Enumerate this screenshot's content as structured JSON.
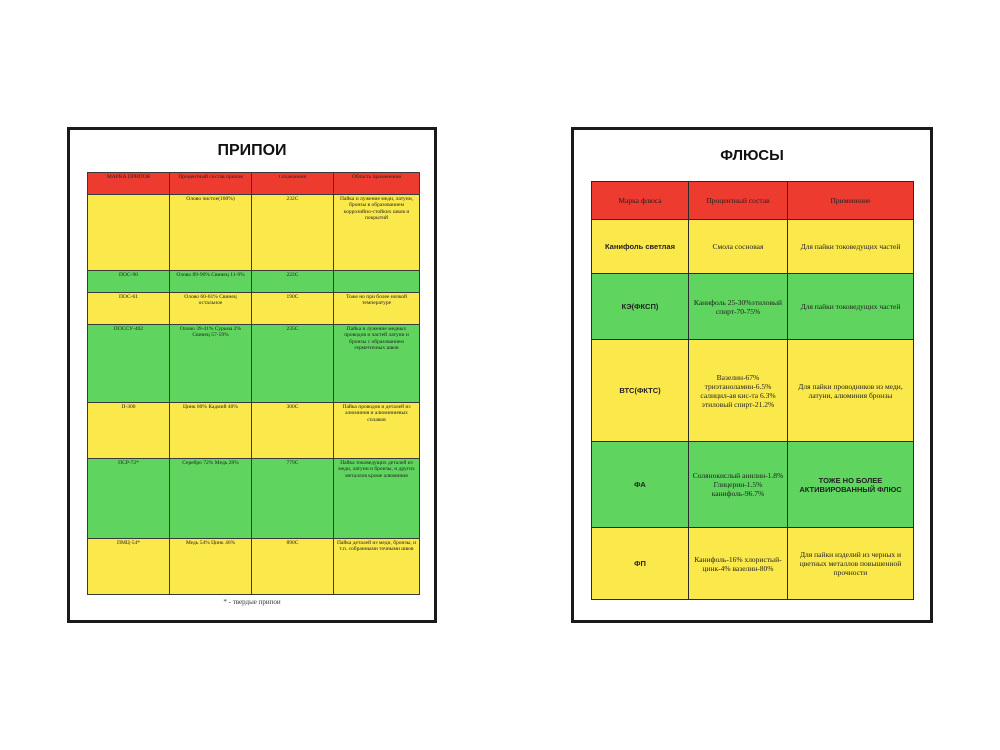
{
  "solders": {
    "title": "ПРИПОИ",
    "headers": [
      "МАРКА ПРИПОЯ",
      "Процентный состав припоя",
      "t плавления",
      "Область применения"
    ],
    "rows": [
      {
        "color": "y",
        "cells": [
          "",
          "Олово чистое(100%)",
          "232С",
          "Пайка и лужение меди, латуни, бронзы в образованием коррозийно-стойких швов и покрытий"
        ]
      },
      {
        "color": "g",
        "cells": [
          "ПОС-90",
          "Олово 89-90% Свинец 11-9%",
          "222С",
          ""
        ]
      },
      {
        "color": "y",
        "cells": [
          "ПОС-61",
          "Олово 60-61% Свинец остальное",
          "190С",
          "Тоже но при более низкой температуре"
        ]
      },
      {
        "color": "g",
        "cells": [
          "ПОССУ-402",
          "Олово 39-41% Сурьма 2% Свинец 57-59%",
          "235С",
          "Пайка и лужение медных проводов и частей латуни и бронзы с образованием герметичных швов"
        ]
      },
      {
        "color": "y",
        "cells": [
          "П-300",
          "Цинк 60% Кадмий 40%",
          "300С",
          "Пайка проводов и деталей из алюминия и алюминиевых сплавов"
        ]
      },
      {
        "color": "g",
        "cells": [
          "ПСР-72*",
          "Серебро 72% Медь 28%",
          "779С",
          "Пайка токоведущих деталей из меди, латуни и бронзы, и других металлов кроме алюминия"
        ]
      },
      {
        "color": "y",
        "cells": [
          "ПМЦ-54*",
          "Медь 54% Цинк 46%",
          "890С",
          "Пайка деталей из меди, бронзы, и т.п. собранными точными швов"
        ]
      }
    ],
    "footnote": "* - твердые припои"
  },
  "fluxes": {
    "title": "ФЛЮСЫ",
    "headers": [
      "Марка флюса",
      "Процентный состав",
      "Применение"
    ],
    "rows": [
      {
        "color": "y",
        "cells": [
          "Канифоль светлая",
          "Смола сосновая",
          "Для пайки токоведущих частей"
        ],
        "bold3": false
      },
      {
        "color": "g",
        "cells": [
          "КЭ(ФКСП)",
          "Канифоль 25-30%этиловый спирт-70-75%",
          "Для пайки токоведущих частей"
        ],
        "bold3": false
      },
      {
        "color": "y",
        "cells": [
          "ВТС(ФКТС)",
          "Вазелин-67% триэтаноламин-6.5% салицил-ая кис-та 6.3% этиловый спирт-21.2%",
          "Для пайки проводников из меди, латуни, алюминия бронзы"
        ],
        "bold3": false
      },
      {
        "color": "g",
        "cells": [
          "ФА",
          "Солянокислый анилин-1.8% Глицерин-1.5% канифоль-96.7%",
          "ТОЖЕ НО БОЛЕЕ АКТИВИРОВАННЫЙ ФЛЮС"
        ],
        "bold3": true
      },
      {
        "color": "y",
        "cells": [
          "ФП",
          "Канифоль-16% хлористый-цинк-4% вазелин-80%",
          "Для пайки изделий из черных и цветных металлов повышенной прочности"
        ],
        "bold3": false
      }
    ]
  }
}
